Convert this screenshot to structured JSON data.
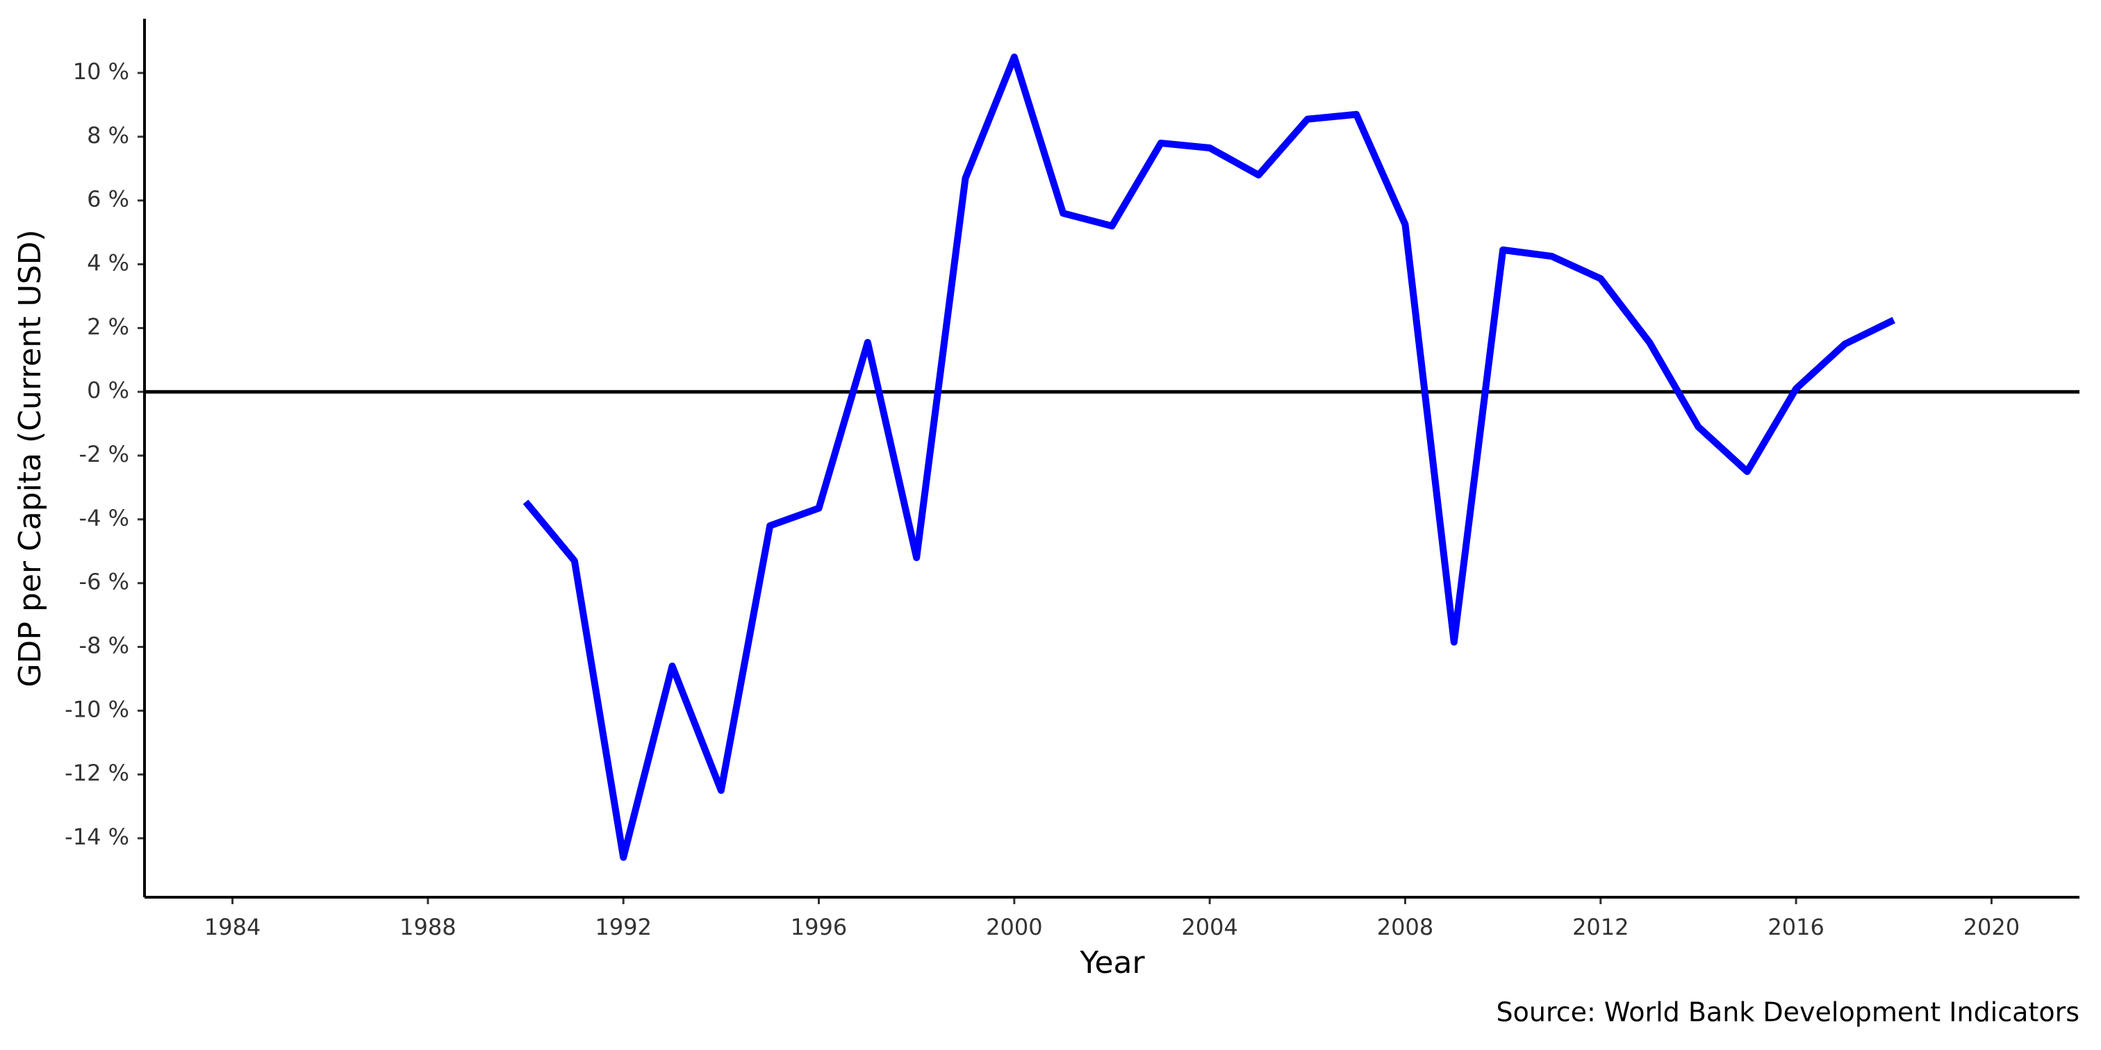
{
  "chart_data": {
    "type": "line",
    "x_label": "Year",
    "y_label": "GDP per Capita (Current USD)",
    "caption": "Source: World Bank Development Indicators",
    "x": [
      1990,
      1991,
      1992,
      1993,
      1994,
      1995,
      1996,
      1997,
      1998,
      1999,
      2000,
      2001,
      2002,
      2003,
      2004,
      2005,
      2006,
      2007,
      2008,
      2009,
      2010,
      2011,
      2012,
      2013,
      2014,
      2015,
      2016,
      2017,
      2018
    ],
    "values": [
      -3.45,
      -5.3,
      -14.6,
      -8.6,
      -12.5,
      -4.2,
      -3.65,
      1.55,
      -5.2,
      6.7,
      10.5,
      5.6,
      5.2,
      7.8,
      7.65,
      6.8,
      8.55,
      8.7,
      5.25,
      -7.85,
      4.45,
      4.25,
      3.55,
      1.55,
      -1.1,
      -2.5,
      0.1,
      1.5,
      2.25
    ],
    "color": "#0000ff",
    "xlim": [
      1982.2,
      2021.8
    ],
    "xticks": [
      1984,
      1988,
      1992,
      1996,
      2000,
      2004,
      2008,
      2012,
      2016,
      2020
    ],
    "ylim": [
      -15.85,
      11.7
    ],
    "yticks": [
      {
        "value": -14,
        "label": "-14 %"
      },
      {
        "value": -12,
        "label": "-12 %"
      },
      {
        "value": -10,
        "label": "-10 %"
      },
      {
        "value": -8,
        "label": "-8 %"
      },
      {
        "value": -6,
        "label": "-6 %"
      },
      {
        "value": -4,
        "label": "-4 %"
      },
      {
        "value": -2,
        "label": "-2 %"
      },
      {
        "value": 0,
        "label": "0 %"
      },
      {
        "value": 2,
        "label": "2 %"
      },
      {
        "value": 4,
        "label": "4 %"
      },
      {
        "value": 6,
        "label": "6 %"
      },
      {
        "value": 8,
        "label": "8 %"
      },
      {
        "value": 10,
        "label": "10 %"
      }
    ],
    "reference_line": 0,
    "grid": false
  }
}
